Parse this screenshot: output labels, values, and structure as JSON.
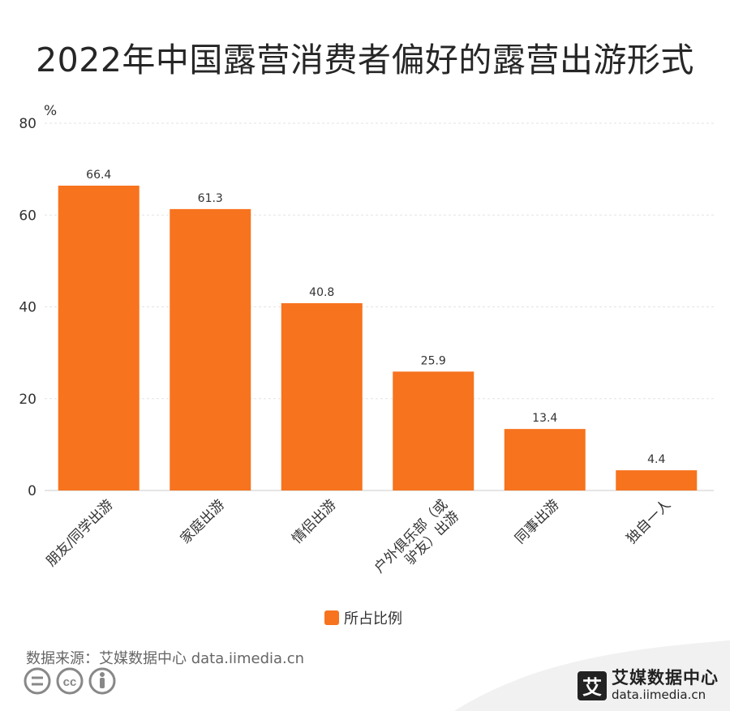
{
  "title": "2022年中国露营消费者偏好的露营出游形式",
  "colors": {
    "bar": "#f7731e",
    "grid": "#e3e3e3",
    "axis": "#cccccc"
  },
  "chart_data": {
    "type": "bar",
    "title": "2022年中国露营消费者偏好的露营出游形式",
    "unit_label": "%",
    "categories": [
      "朋友/同学出游",
      "家庭出游",
      "情侣出游",
      "户外俱乐部（或驴友）出游",
      "同事出游",
      "独自一人"
    ],
    "category_lines": [
      [
        "朋友/同学出游"
      ],
      [
        "家庭出游"
      ],
      [
        "情侣出游"
      ],
      [
        "户外俱乐部（或",
        "驴友）出游"
      ],
      [
        "同事出游"
      ],
      [
        "独自一人"
      ]
    ],
    "series": [
      {
        "name": "所占比例",
        "values": [
          66.4,
          61.3,
          40.8,
          25.9,
          13.4,
          4.4
        ]
      }
    ],
    "ylim": [
      0,
      80
    ],
    "yticks": [
      "0",
      "20",
      "40",
      "60",
      "80"
    ],
    "grid": true,
    "legend_position": "bottom-center"
  },
  "legend": {
    "label": "所占比例"
  },
  "source": "数据来源：艾媒数据中心 data.iimedia.cn",
  "brand": {
    "mark": "艾",
    "name": "艾媒数据中心",
    "url": "data.iimedia.cn"
  },
  "icons": [
    "equals-circle-icon",
    "cc-circle-icon",
    "person-circle-icon"
  ]
}
